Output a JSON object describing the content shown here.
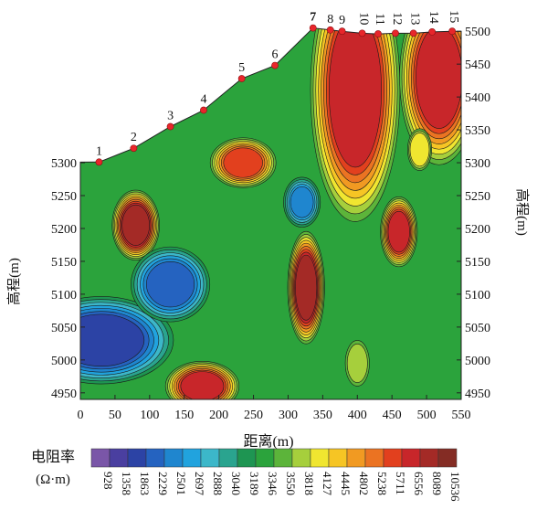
{
  "chart_data": {
    "type": "heatmap",
    "title": "",
    "xlabel": "距离(m)",
    "ylabel_left": "高程(m)",
    "ylabel_right": "高程(m)",
    "xlim": [
      0,
      550
    ],
    "ylim": [
      4940,
      5510
    ],
    "x_ticks": [
      0,
      50,
      100,
      150,
      200,
      250,
      300,
      350,
      400,
      450,
      500,
      550
    ],
    "y_ticks": [
      4950,
      5000,
      5050,
      5100,
      5150,
      5200,
      5250,
      5300,
      5350,
      5400,
      5450,
      5500
    ],
    "electrodes": [
      {
        "label": "1",
        "x": 27,
        "y": 5301
      },
      {
        "label": "2",
        "x": 77,
        "y": 5322
      },
      {
        "label": "3",
        "x": 130,
        "y": 5355
      },
      {
        "label": "4",
        "x": 178,
        "y": 5380
      },
      {
        "label": "5",
        "x": 233,
        "y": 5428
      },
      {
        "label": "6",
        "x": 281,
        "y": 5448
      },
      {
        "label": "7",
        "x": 336,
        "y": 5505
      },
      {
        "label": "8",
        "x": 361,
        "y": 5502
      },
      {
        "label": "9",
        "x": 378,
        "y": 5500
      },
      {
        "label": "10",
        "x": 407,
        "y": 5497
      },
      {
        "label": "11",
        "x": 430,
        "y": 5496
      },
      {
        "label": "12",
        "x": 455,
        "y": 5497
      },
      {
        "label": "13",
        "x": 481,
        "y": 5497
      },
      {
        "label": "14",
        "x": 508,
        "y": 5499
      },
      {
        "label": "15",
        "x": 537,
        "y": 5500
      }
    ],
    "colorbar": {
      "label_line1": "电阻率",
      "label_line2": "(Ω·m)",
      "tick_labels": [
        "928",
        "1358",
        "1863",
        "2229",
        "2501",
        "2697",
        "2888",
        "3040",
        "3189",
        "3346",
        "3550",
        "3818",
        "4127",
        "4445",
        "4802",
        "5238",
        "5711",
        "6556",
        "8089",
        "10536"
      ],
      "colors": [
        "#7a56a8",
        "#4a3fa0",
        "#2c43a5",
        "#2563c0",
        "#1f86cf",
        "#21a3de",
        "#3cb7c9",
        "#2aa48f",
        "#1e9552",
        "#2ba33c",
        "#5cb43a",
        "#a6cf3c",
        "#f0e630",
        "#f6c524",
        "#f19a22",
        "#eb7322",
        "#e2401e",
        "#c8262a",
        "#a42a26",
        "#842c24"
      ]
    },
    "anomalies": [
      {
        "level": 17,
        "x": 397,
        "y": 5410,
        "rx": 34,
        "ry": 105,
        "note": "high resistivity body beneath electrodes 9–12"
      },
      {
        "level": 17,
        "x": 518,
        "y": 5430,
        "rx": 30,
        "ry": 70,
        "note": "high resistivity body near electrode 15"
      },
      {
        "level": 18,
        "x": 80,
        "y": 5205,
        "rx": 18,
        "ry": 28,
        "note": "high resistivity closure"
      },
      {
        "level": 18,
        "x": 326,
        "y": 5110,
        "rx": 14,
        "ry": 45,
        "note": "high resistivity closure"
      },
      {
        "level": 17,
        "x": 460,
        "y": 5195,
        "rx": 14,
        "ry": 28,
        "note": "high resistivity closure"
      },
      {
        "level": 17,
        "x": 176,
        "y": 4960,
        "rx": 28,
        "ry": 20,
        "note": "high resistivity closure"
      },
      {
        "level": 16,
        "x": 235,
        "y": 5300,
        "rx": 25,
        "ry": 20,
        "note": "high resistivity closure"
      },
      {
        "level": 2,
        "x": 30,
        "y": 5030,
        "rx": 55,
        "ry": 35,
        "note": "low resistivity zone"
      },
      {
        "level": 3,
        "x": 130,
        "y": 5115,
        "rx": 30,
        "ry": 30,
        "note": "low resistivity zone"
      },
      {
        "level": 4,
        "x": 320,
        "y": 5240,
        "rx": 14,
        "ry": 20,
        "note": "low resistivity zone"
      },
      {
        "level": 11,
        "x": 400,
        "y": 4995,
        "rx": 12,
        "ry": 24,
        "note": "moderate closure"
      },
      {
        "level": 12,
        "x": 490,
        "y": 5320,
        "rx": 12,
        "ry": 22,
        "note": "moderate closure"
      }
    ]
  }
}
